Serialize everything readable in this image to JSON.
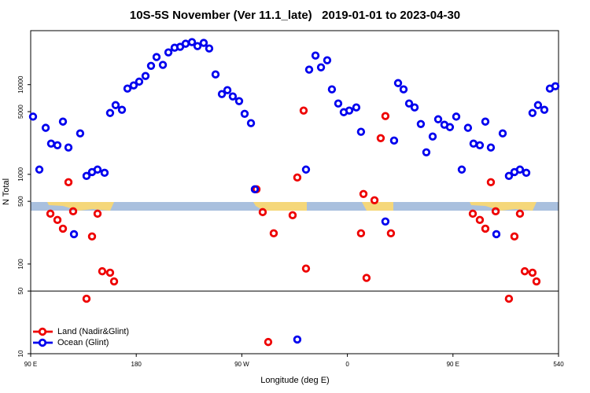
{
  "chart_data": {
    "type": "scatter",
    "title": "10S-5S November (Ver 11.1_late)   2019-01-01 to 2023-04-30",
    "xlabel": "Longitude (deg E)",
    "ylabel": "N Total",
    "xlim": [
      90,
      540
    ],
    "xticks": [
      {
        "value": 90,
        "label": "90 E"
      },
      180,
      {
        "value": 270,
        "label": "90 W"
      },
      {
        "value": 360,
        "label": "0"
      },
      {
        "value": 450,
        "label": "90 E"
      },
      540
    ],
    "ylim": [
      10,
      40000
    ],
    "log_y": true,
    "yticks": [
      10,
      50,
      100,
      500,
      1000,
      5000,
      10000
    ],
    "reference_line": 50,
    "legend": "lower left",
    "series": [
      {
        "name": "Land (Nadir&Glint)",
        "color": "#ee0000",
        "x": [
          106.8,
          112.8,
          117.5,
          122.2,
          126.2,
          137.6,
          142.3,
          147.0,
          151.0,
          157.7,
          161.1,
          282.5,
          287.8,
          297.2,
          292.5,
          313.3,
          317.3,
          322.7,
          324.7,
          371.6,
          373.7,
          376.3,
          383.1,
          388.4,
          392.4,
          397.1,
          466.9,
          472.9,
          477.6,
          482.3,
          486.4,
          497.7,
          502.4,
          507.1,
          511.2,
          517.8,
          521.2
        ],
        "values": [
          364,
          310,
          248,
          817,
          387,
          41,
          203,
          364,
          83,
          80,
          64,
          681,
          379,
          220,
          13.5,
          350,
          922,
          5140,
          89,
          220,
          604,
          70,
          514,
          2530,
          4460,
          220,
          364,
          310,
          248,
          817,
          387,
          41,
          203,
          364,
          83,
          80,
          64
        ]
      },
      {
        "name": "Ocean (Glint)",
        "color": "#0000ee",
        "x": [
          92.0,
          97.4,
          102.8,
          107.4,
          112.8,
          117.5,
          122.2,
          126.9,
          132.2,
          137.6,
          142.3,
          147.0,
          153.0,
          157.7,
          162.4,
          167.8,
          172.5,
          177.8,
          182.5,
          187.9,
          192.6,
          197.3,
          202.7,
          207.4,
          212.7,
          217.4,
          222.1,
          227.5,
          232.2,
          237.5,
          242.2,
          247.6,
          253.0,
          257.7,
          262.3,
          267.7,
          272.4,
          277.8,
          281.1,
          317.3,
          324.7,
          327.4,
          332.8,
          337.5,
          342.8,
          346.8,
          352.2,
          356.9,
          361.6,
          367.6,
          371.6,
          392.4,
          399.8,
          403.2,
          407.9,
          412.6,
          417.3,
          422.6,
          427.3,
          432.7,
          437.4,
          442.7,
          447.4,
          452.8,
          457.5,
          462.8,
          467.5,
          472.9,
          477.6,
          482.3,
          487.0,
          492.4,
          497.7,
          502.4,
          507.1,
          512.5,
          517.8,
          522.5,
          527.9,
          532.6,
          537.3
        ],
        "values": [
          4400,
          1130,
          3300,
          2200,
          2110,
          3870,
          1990,
          215,
          2860,
          960,
          1060,
          1130,
          1040,
          4830,
          5910,
          5240,
          9040,
          9800,
          10800,
          12500,
          16200,
          20300,
          16600,
          22900,
          25800,
          26400,
          28600,
          29800,
          26900,
          29200,
          25300,
          13000,
          7850,
          8680,
          7390,
          6550,
          4730,
          3720,
          681,
          14.4,
          1130,
          14700,
          21100,
          15600,
          18700,
          8860,
          6160,
          4930,
          5140,
          5570,
          2980,
          298,
          2380,
          10400,
          8860,
          6160,
          5570,
          3640,
          1760,
          2640,
          4110,
          3570,
          3360,
          4400,
          1130,
          3300,
          2200,
          2110,
          3870,
          1990,
          215,
          2860,
          960,
          1060,
          1130,
          1040,
          4830,
          5910,
          5240,
          9040,
          9600
        ]
      }
    ]
  }
}
